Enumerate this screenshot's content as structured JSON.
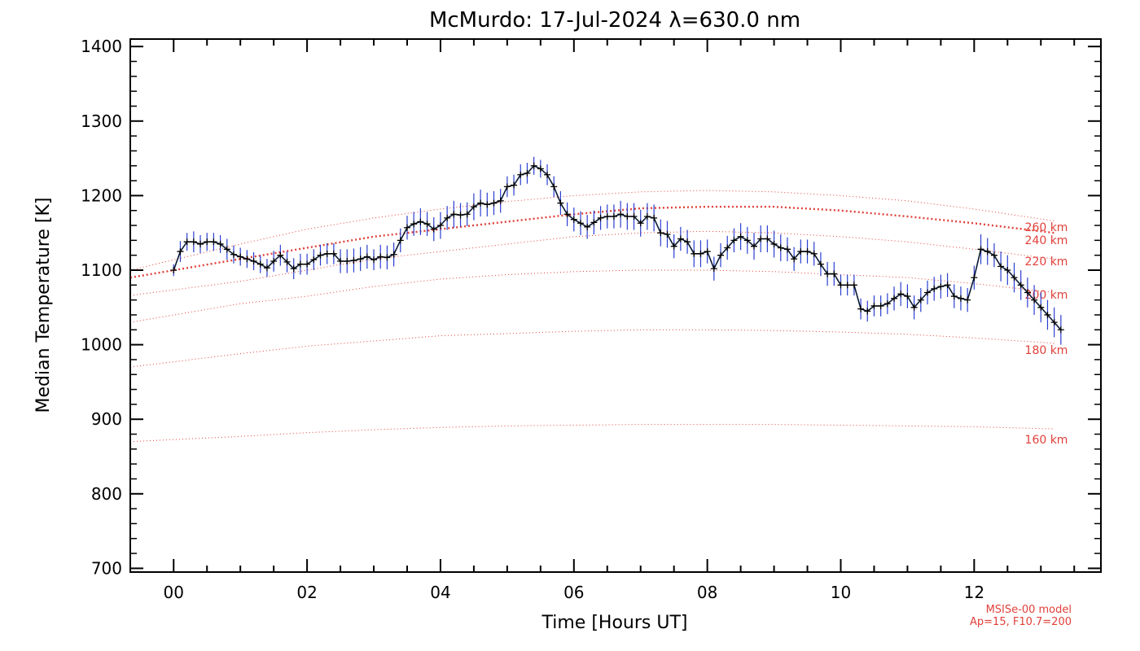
{
  "chart_data": {
    "type": "line",
    "title": "McMurdo: 17-Jul-2024 λ=630.0 nm",
    "xlabel": "Time [Hours UT]",
    "ylabel": "Median Temperature [K]",
    "xlim": [
      -0.65,
      13.9
    ],
    "ylim": [
      695,
      1410
    ],
    "xticks": [
      {
        "value": 0,
        "label": "00"
      },
      {
        "value": 2,
        "label": "02"
      },
      {
        "value": 4,
        "label": "04"
      },
      {
        "value": 6,
        "label": "06"
      },
      {
        "value": 8,
        "label": "08"
      },
      {
        "value": 10,
        "label": "10"
      },
      {
        "value": 12,
        "label": "12"
      }
    ],
    "yticks": [
      700,
      800,
      900,
      1000,
      1100,
      1200,
      1300,
      1400
    ],
    "grid": false,
    "colors": {
      "data_line": "#0a1a33",
      "error_bars": "#2a3fd0",
      "markers": "#000000",
      "model_lines": "#e0403a"
    },
    "series": [
      {
        "x": [
          0.0,
          0.1,
          0.2,
          0.3,
          0.4,
          0.5,
          0.6,
          0.7,
          0.8,
          0.9,
          1.0,
          1.1,
          1.2,
          1.3,
          1.4,
          1.5,
          1.6,
          1.7,
          1.8,
          1.9,
          2.0,
          2.1,
          2.2,
          2.3,
          2.4,
          2.5,
          2.6,
          2.7,
          2.8,
          2.9,
          3.0,
          3.1,
          3.2,
          3.3,
          3.4,
          3.5,
          3.6,
          3.7,
          3.8,
          3.9,
          4.0,
          4.1,
          4.2,
          4.3,
          4.4,
          4.5,
          4.6,
          4.7,
          4.8,
          4.9,
          5.0,
          5.1,
          5.2,
          5.3,
          5.4,
          5.5,
          5.6,
          5.7,
          5.8,
          5.9,
          6.0,
          6.1,
          6.2,
          6.3,
          6.4,
          6.5,
          6.6,
          6.7,
          6.8,
          6.9,
          7.0,
          7.1,
          7.2,
          7.3,
          7.4,
          7.5,
          7.6,
          7.7,
          7.8,
          7.9,
          8.0,
          8.1,
          8.2,
          8.3,
          8.4,
          8.5,
          8.6,
          8.7,
          8.8,
          8.9,
          9.0,
          9.1,
          9.2,
          9.3,
          9.4,
          9.5,
          9.6,
          9.7,
          9.8,
          9.9,
          10.0,
          10.1,
          10.2,
          10.3,
          10.4,
          10.5,
          10.6,
          10.7,
          10.8,
          10.9,
          11.0,
          11.1,
          11.2,
          11.3,
          11.4,
          11.5,
          11.6,
          11.7,
          11.8,
          11.9,
          12.0,
          12.1,
          12.2,
          12.3,
          12.4,
          12.5,
          12.6,
          12.7,
          12.8,
          12.9,
          13.0,
          13.1,
          13.2,
          13.3
        ],
        "values": [
          1100,
          1125,
          1138,
          1138,
          1135,
          1138,
          1138,
          1135,
          1128,
          1121,
          1118,
          1115,
          1112,
          1108,
          1103,
          1112,
          1120,
          1111,
          1102,
          1108,
          1108,
          1114,
          1120,
          1122,
          1122,
          1112,
          1112,
          1113,
          1115,
          1118,
          1114,
          1118,
          1117,
          1121,
          1140,
          1157,
          1162,
          1165,
          1162,
          1155,
          1160,
          1170,
          1175,
          1174,
          1175,
          1185,
          1190,
          1188,
          1190,
          1193,
          1212,
          1214,
          1228,
          1230,
          1240,
          1236,
          1228,
          1212,
          1190,
          1175,
          1168,
          1163,
          1158,
          1164,
          1170,
          1172,
          1172,
          1175,
          1172,
          1172,
          1163,
          1172,
          1170,
          1150,
          1148,
          1132,
          1142,
          1138,
          1122,
          1122,
          1125,
          1102,
          1120,
          1130,
          1140,
          1145,
          1140,
          1132,
          1142,
          1142,
          1135,
          1130,
          1128,
          1115,
          1125,
          1125,
          1122,
          1108,
          1095,
          1095,
          1080,
          1080,
          1080,
          1048,
          1045,
          1052,
          1052,
          1055,
          1062,
          1068,
          1065,
          1050,
          1060,
          1070,
          1075,
          1078,
          1080,
          1065,
          1062,
          1060,
          1090,
          1128,
          1125,
          1120,
          1105,
          1100,
          1090,
          1080,
          1070,
          1060,
          1050,
          1040,
          1030,
          1020
        ],
        "error": [
          8,
          14,
          12,
          14,
          12,
          12,
          12,
          12,
          14,
          12,
          12,
          12,
          12,
          12,
          12,
          14,
          14,
          14,
          14,
          14,
          14,
          14,
          14,
          14,
          14,
          16,
          16,
          16,
          16,
          16,
          14,
          16,
          16,
          16,
          16,
          16,
          16,
          18,
          16,
          16,
          18,
          16,
          18,
          16,
          16,
          18,
          18,
          16,
          16,
          16,
          14,
          14,
          14,
          14,
          12,
          12,
          14,
          14,
          16,
          16,
          16,
          16,
          16,
          16,
          16,
          16,
          16,
          18,
          18,
          18,
          18,
          18,
          18,
          18,
          18,
          16,
          16,
          16,
          18,
          18,
          16,
          16,
          16,
          16,
          16,
          18,
          18,
          18,
          18,
          18,
          18,
          18,
          16,
          16,
          16,
          16,
          16,
          16,
          16,
          16,
          14,
          14,
          14,
          14,
          14,
          14,
          14,
          14,
          16,
          16,
          16,
          16,
          16,
          16,
          16,
          16,
          16,
          16,
          16,
          16,
          16,
          20,
          18,
          16,
          20,
          20,
          20,
          20,
          20,
          20,
          20,
          20,
          20,
          20
        ]
      }
    ],
    "model_curves": [
      {
        "label": "260 km",
        "x": [
          -0.65,
          1,
          2,
          3,
          4,
          5,
          6,
          7,
          8,
          9,
          10,
          11,
          12,
          13.2
        ],
        "values": [
          1090,
          1115,
          1130,
          1145,
          1155,
          1165,
          1175,
          1183,
          1185,
          1185,
          1180,
          1172,
          1163,
          1150
        ],
        "bold": true
      },
      {
        "label": "240 km",
        "x": [
          -0.65,
          1,
          2,
          3,
          4,
          5,
          6,
          7,
          8,
          9,
          10,
          11,
          12,
          13.2
        ],
        "values": [
          1100,
          1135,
          1155,
          1170,
          1182,
          1192,
          1200,
          1205,
          1207,
          1205,
          1200,
          1193,
          1182,
          1166
        ],
        "bold": false
      },
      {
        "label": "220 km",
        "x": [
          -0.65,
          1,
          2,
          3,
          4,
          5,
          6,
          7,
          8,
          9,
          10,
          11,
          12,
          13.2
        ],
        "values": [
          1066,
          1085,
          1100,
          1115,
          1125,
          1135,
          1145,
          1150,
          1152,
          1150,
          1145,
          1138,
          1128,
          1115
        ],
        "bold": false
      },
      {
        "label": "200 km",
        "x": [
          -0.65,
          1,
          2,
          3,
          4,
          5,
          6,
          7,
          8,
          9,
          10,
          11,
          12,
          13.2
        ],
        "values": [
          1030,
          1055,
          1065,
          1078,
          1088,
          1094,
          1098,
          1100,
          1100,
          1098,
          1094,
          1090,
          1082,
          1070
        ],
        "bold": false
      },
      {
        "label": "180 km",
        "x": [
          -0.65,
          1,
          2,
          3,
          4,
          5,
          6,
          7,
          8,
          9,
          10,
          11,
          12,
          13.2
        ],
        "values": [
          970,
          988,
          998,
          1005,
          1012,
          1015,
          1018,
          1020,
          1020,
          1019,
          1017,
          1014,
          1009,
          1002
        ],
        "bold": false
      },
      {
        "label": "160 km",
        "x": [
          -0.65,
          1,
          2,
          3,
          4,
          5,
          6,
          7,
          8,
          9,
          10,
          11,
          12,
          13.2
        ],
        "values": [
          870,
          877,
          882,
          886,
          889,
          891,
          892,
          893,
          893,
          893,
          892,
          891,
          890,
          887
        ],
        "bold": false
      }
    ],
    "annotations": [
      "MSISe-00 model",
      "Ap=15, F10.7=200"
    ]
  }
}
